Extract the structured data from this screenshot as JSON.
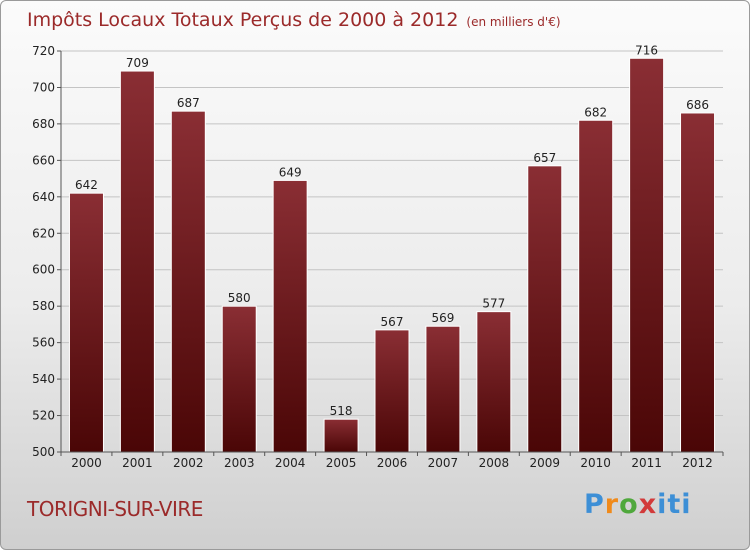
{
  "chart_data": {
    "type": "bar",
    "title": "Impôts Locaux Totaux Perçus de 2000 à 2012",
    "subtitle": "(en milliers d'€)",
    "xlabel": "",
    "ylabel": "",
    "categories": [
      "2000",
      "2001",
      "2002",
      "2003",
      "2004",
      "2005",
      "2006",
      "2007",
      "2008",
      "2009",
      "2010",
      "2011",
      "2012"
    ],
    "values": [
      642,
      709,
      687,
      580,
      649,
      518,
      567,
      569,
      577,
      657,
      682,
      716,
      686
    ],
    "ylim": [
      500,
      720
    ],
    "yticks": [
      500,
      520,
      540,
      560,
      580,
      600,
      620,
      640,
      660,
      680,
      700,
      720
    ],
    "grid": true,
    "bar_color_top": "#8a2e34",
    "bar_color_bottom": "#4a0606"
  },
  "location": "TORIGNI-SUR-VIRE",
  "logo": {
    "p": "P",
    "r": "r",
    "o": "o",
    "x": "x",
    "iti": "iti"
  }
}
